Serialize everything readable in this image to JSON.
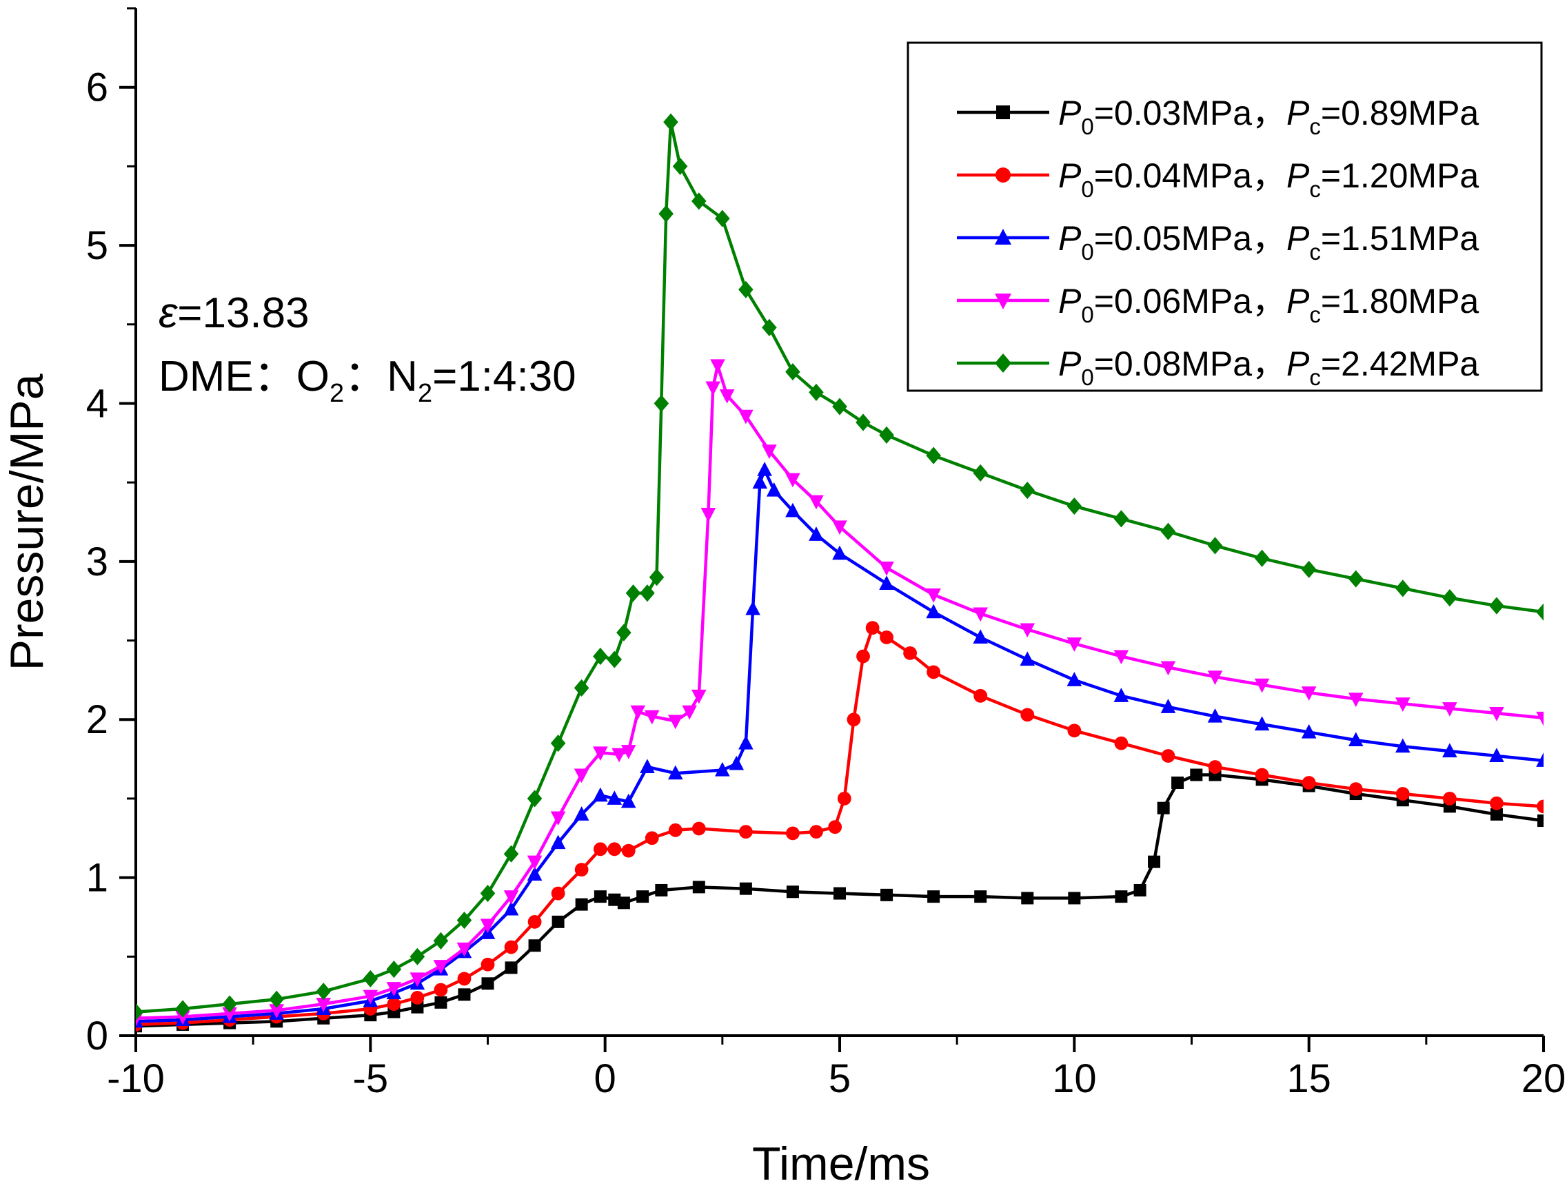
{
  "chart_data": {
    "type": "line",
    "xlabel": "Time/ms",
    "ylabel": "Pressure/MPa",
    "xlim": [
      -10,
      20
    ],
    "ylim": [
      0,
      6.5
    ],
    "xticks": [
      -10,
      -5,
      0,
      5,
      10,
      15,
      20
    ],
    "yticks": [
      0,
      1,
      2,
      3,
      4,
      5,
      6
    ],
    "xtick_labels": [
      "-10",
      "-5",
      "0",
      "5",
      "10",
      "15",
      "20"
    ],
    "ytick_labels": [
      "0",
      "1",
      "2",
      "3",
      "4",
      "5",
      "6"
    ],
    "legend_position": "top-right",
    "annotations": {
      "eps_symbol": "ε",
      "eps_value": "=13.83",
      "mix_prefix": "DME：O",
      "mix_o2_sub": "2",
      "mix_mid": "：N",
      "mix_n2_sub": "2",
      "mix_suffix": "=1:4:30"
    },
    "series": [
      {
        "legend": {
          "p": "P",
          "p_sub": "0",
          "p_val": "=0.03MPa，",
          "pc": "P",
          "pc_sub": "c",
          "pc_val": "=0.89MPa"
        },
        "color": "#000000",
        "marker": "square",
        "points": [
          [
            -10,
            0.06
          ],
          [
            -9,
            0.07
          ],
          [
            -8,
            0.08
          ],
          [
            -7,
            0.09
          ],
          [
            -6,
            0.11
          ],
          [
            -5,
            0.13
          ],
          [
            -4.5,
            0.15
          ],
          [
            -4,
            0.18
          ],
          [
            -3.5,
            0.21
          ],
          [
            -3,
            0.26
          ],
          [
            -2.5,
            0.33
          ],
          [
            -2,
            0.43
          ],
          [
            -1.5,
            0.57
          ],
          [
            -1,
            0.72
          ],
          [
            -0.5,
            0.83
          ],
          [
            -0.1,
            0.88
          ],
          [
            0.2,
            0.86
          ],
          [
            0.4,
            0.84
          ],
          [
            0.8,
            0.88
          ],
          [
            1.2,
            0.92
          ],
          [
            2,
            0.94
          ],
          [
            3,
            0.93
          ],
          [
            4,
            0.91
          ],
          [
            5,
            0.9
          ],
          [
            6,
            0.89
          ],
          [
            7,
            0.88
          ],
          [
            8,
            0.88
          ],
          [
            9,
            0.87
          ],
          [
            10,
            0.87
          ],
          [
            11,
            0.88
          ],
          [
            11.4,
            0.92
          ],
          [
            11.7,
            1.1
          ],
          [
            11.9,
            1.44
          ],
          [
            12.2,
            1.6
          ],
          [
            12.6,
            1.65
          ],
          [
            13,
            1.65
          ],
          [
            14,
            1.62
          ],
          [
            15,
            1.58
          ],
          [
            16,
            1.53
          ],
          [
            17,
            1.49
          ],
          [
            18,
            1.45
          ],
          [
            19,
            1.4
          ],
          [
            20,
            1.36
          ]
        ]
      },
      {
        "legend": {
          "p": "P",
          "p_sub": "0",
          "p_val": "=0.04MPa，",
          "pc": "P",
          "pc_sub": "c",
          "pc_val": "=1.20MPa"
        },
        "color": "#ff0000",
        "marker": "circle",
        "points": [
          [
            -10,
            0.07
          ],
          [
            -9,
            0.08
          ],
          [
            -8,
            0.1
          ],
          [
            -7,
            0.12
          ],
          [
            -6,
            0.14
          ],
          [
            -5,
            0.17
          ],
          [
            -4.5,
            0.2
          ],
          [
            -4,
            0.24
          ],
          [
            -3.5,
            0.29
          ],
          [
            -3,
            0.36
          ],
          [
            -2.5,
            0.45
          ],
          [
            -2,
            0.56
          ],
          [
            -1.5,
            0.72
          ],
          [
            -1,
            0.9
          ],
          [
            -0.5,
            1.05
          ],
          [
            -0.1,
            1.18
          ],
          [
            0.2,
            1.18
          ],
          [
            0.5,
            1.17
          ],
          [
            1,
            1.25
          ],
          [
            1.5,
            1.3
          ],
          [
            2,
            1.31
          ],
          [
            3,
            1.29
          ],
          [
            4,
            1.28
          ],
          [
            4.5,
            1.29
          ],
          [
            4.9,
            1.32
          ],
          [
            5.1,
            1.5
          ],
          [
            5.3,
            2.0
          ],
          [
            5.5,
            2.4
          ],
          [
            5.7,
            2.58
          ],
          [
            6,
            2.52
          ],
          [
            6.5,
            2.42
          ],
          [
            7,
            2.3
          ],
          [
            8,
            2.15
          ],
          [
            9,
            2.03
          ],
          [
            10,
            1.93
          ],
          [
            11,
            1.85
          ],
          [
            12,
            1.77
          ],
          [
            13,
            1.7
          ],
          [
            14,
            1.65
          ],
          [
            15,
            1.6
          ],
          [
            16,
            1.56
          ],
          [
            17,
            1.53
          ],
          [
            18,
            1.5
          ],
          [
            19,
            1.47
          ],
          [
            20,
            1.45
          ]
        ]
      },
      {
        "legend": {
          "p": "P",
          "p_sub": "0",
          "p_val": "=0.05MPa，",
          "pc": "P",
          "pc_sub": "c",
          "pc_val": "=1.51MPa"
        },
        "color": "#0000ff",
        "marker": "triangle-up",
        "points": [
          [
            -10,
            0.09
          ],
          [
            -9,
            0.1
          ],
          [
            -8,
            0.12
          ],
          [
            -7,
            0.14
          ],
          [
            -6,
            0.17
          ],
          [
            -5,
            0.22
          ],
          [
            -4.5,
            0.27
          ],
          [
            -4,
            0.33
          ],
          [
            -3.5,
            0.42
          ],
          [
            -3,
            0.53
          ],
          [
            -2.5,
            0.65
          ],
          [
            -2,
            0.8
          ],
          [
            -1.5,
            1.02
          ],
          [
            -1,
            1.22
          ],
          [
            -0.5,
            1.4
          ],
          [
            -0.1,
            1.52
          ],
          [
            0.2,
            1.5
          ],
          [
            0.5,
            1.48
          ],
          [
            0.9,
            1.7
          ],
          [
            1.5,
            1.66
          ],
          [
            2.5,
            1.68
          ],
          [
            2.8,
            1.72
          ],
          [
            3.0,
            1.85
          ],
          [
            3.15,
            2.7
          ],
          [
            3.3,
            3.5
          ],
          [
            3.4,
            3.58
          ],
          [
            3.6,
            3.45
          ],
          [
            4,
            3.32
          ],
          [
            4.5,
            3.17
          ],
          [
            5,
            3.05
          ],
          [
            6,
            2.86
          ],
          [
            7,
            2.68
          ],
          [
            8,
            2.52
          ],
          [
            9,
            2.38
          ],
          [
            10,
            2.25
          ],
          [
            11,
            2.15
          ],
          [
            12,
            2.08
          ],
          [
            13,
            2.02
          ],
          [
            14,
            1.97
          ],
          [
            15,
            1.92
          ],
          [
            16,
            1.87
          ],
          [
            17,
            1.83
          ],
          [
            18,
            1.8
          ],
          [
            19,
            1.77
          ],
          [
            20,
            1.74
          ]
        ]
      },
      {
        "legend": {
          "p": "P",
          "p_sub": "0",
          "p_val": "=0.06MPa，",
          "pc": "P",
          "pc_sub": "c",
          "pc_val": "=1.80MPa"
        },
        "color": "#ff00ff",
        "marker": "triangle-down",
        "points": [
          [
            -10,
            0.11
          ],
          [
            -9,
            0.12
          ],
          [
            -8,
            0.14
          ],
          [
            -7,
            0.16
          ],
          [
            -6,
            0.2
          ],
          [
            -5,
            0.25
          ],
          [
            -4.5,
            0.3
          ],
          [
            -4,
            0.36
          ],
          [
            -3.5,
            0.44
          ],
          [
            -3,
            0.55
          ],
          [
            -2.5,
            0.7
          ],
          [
            -2,
            0.88
          ],
          [
            -1.5,
            1.1
          ],
          [
            -1,
            1.38
          ],
          [
            -0.5,
            1.65
          ],
          [
            -0.1,
            1.79
          ],
          [
            0.3,
            1.78
          ],
          [
            0.5,
            1.8
          ],
          [
            0.7,
            2.05
          ],
          [
            1.0,
            2.02
          ],
          [
            1.5,
            1.99
          ],
          [
            1.8,
            2.05
          ],
          [
            2.0,
            2.15
          ],
          [
            2.2,
            3.3
          ],
          [
            2.3,
            4.1
          ],
          [
            2.4,
            4.24
          ],
          [
            2.6,
            4.05
          ],
          [
            3,
            3.92
          ],
          [
            3.5,
            3.7
          ],
          [
            4,
            3.52
          ],
          [
            4.5,
            3.38
          ],
          [
            5,
            3.22
          ],
          [
            6,
            2.96
          ],
          [
            7,
            2.79
          ],
          [
            8,
            2.67
          ],
          [
            9,
            2.57
          ],
          [
            10,
            2.48
          ],
          [
            11,
            2.4
          ],
          [
            12,
            2.33
          ],
          [
            13,
            2.27
          ],
          [
            14,
            2.22
          ],
          [
            15,
            2.17
          ],
          [
            16,
            2.13
          ],
          [
            17,
            2.1
          ],
          [
            18,
            2.07
          ],
          [
            19,
            2.04
          ],
          [
            20,
            2.01
          ]
        ]
      },
      {
        "legend": {
          "p": "P",
          "p_sub": "0",
          "p_val": "=0.08MPa，",
          "pc": "P",
          "pc_sub": "c",
          "pc_val": "=2.42MPa"
        },
        "color": "#008000",
        "marker": "diamond",
        "points": [
          [
            -10,
            0.15
          ],
          [
            -9,
            0.17
          ],
          [
            -8,
            0.2
          ],
          [
            -7,
            0.23
          ],
          [
            -6,
            0.28
          ],
          [
            -5,
            0.36
          ],
          [
            -4.5,
            0.42
          ],
          [
            -4,
            0.5
          ],
          [
            -3.5,
            0.6
          ],
          [
            -3,
            0.73
          ],
          [
            -2.5,
            0.9
          ],
          [
            -2,
            1.15
          ],
          [
            -1.5,
            1.5
          ],
          [
            -1,
            1.85
          ],
          [
            -0.5,
            2.2
          ],
          [
            -0.1,
            2.4
          ],
          [
            0.2,
            2.38
          ],
          [
            0.4,
            2.55
          ],
          [
            0.6,
            2.8
          ],
          [
            0.9,
            2.8
          ],
          [
            1.1,
            2.9
          ],
          [
            1.2,
            4.0
          ],
          [
            1.3,
            5.2
          ],
          [
            1.4,
            5.78
          ],
          [
            1.6,
            5.5
          ],
          [
            2,
            5.28
          ],
          [
            2.5,
            5.17
          ],
          [
            3,
            4.72
          ],
          [
            3.5,
            4.48
          ],
          [
            4,
            4.2
          ],
          [
            4.5,
            4.07
          ],
          [
            5,
            3.98
          ],
          [
            5.5,
            3.88
          ],
          [
            6,
            3.8
          ],
          [
            7,
            3.67
          ],
          [
            8,
            3.56
          ],
          [
            9,
            3.45
          ],
          [
            10,
            3.35
          ],
          [
            11,
            3.27
          ],
          [
            12,
            3.19
          ],
          [
            13,
            3.1
          ],
          [
            14,
            3.02
          ],
          [
            15,
            2.95
          ],
          [
            16,
            2.89
          ],
          [
            17,
            2.83
          ],
          [
            18,
            2.77
          ],
          [
            19,
            2.72
          ],
          [
            20,
            2.68
          ]
        ]
      }
    ]
  }
}
